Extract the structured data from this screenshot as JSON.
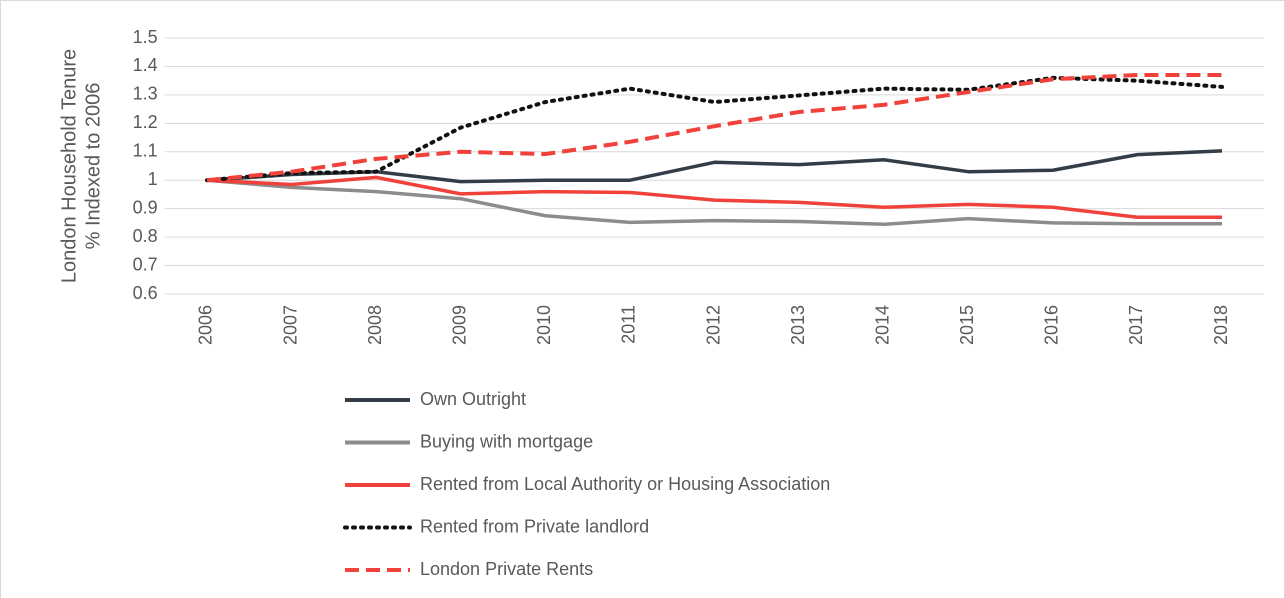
{
  "chart_data": {
    "type": "line",
    "y_label": [
      "London Household Tenure",
      "% Indexed to 2006"
    ],
    "categories": [
      "2006",
      "2007",
      "2008",
      "2009",
      "2010",
      "2011",
      "2012",
      "2013",
      "2014",
      "2015",
      "2016",
      "2017",
      "2018"
    ],
    "ylim": [
      0.6,
      1.5
    ],
    "yticks": [
      0.6,
      0.7,
      0.8,
      0.9,
      1,
      1.1,
      1.2,
      1.3,
      1.4,
      1.5
    ],
    "grid": true,
    "legend": "bottom",
    "series": [
      {
        "name": "Own Outright",
        "color": "#323d47",
        "style": "solid",
        "values": [
          1,
          1.02,
          1.03,
          0.995,
          1.0,
          1.0,
          1.063,
          1.055,
          1.072,
          1.03,
          1.035,
          1.09,
          1.103
        ]
      },
      {
        "name": "Buying with mortgage",
        "color": "#8c8c8c",
        "style": "solid",
        "values": [
          1,
          0.975,
          0.96,
          0.935,
          0.875,
          0.852,
          0.858,
          0.855,
          0.845,
          0.865,
          0.85,
          0.847,
          0.847
        ]
      },
      {
        "name": "Rented from Local Authority or Housing Association",
        "color": "#f0423a",
        "style": "solid",
        "values": [
          1,
          0.985,
          1.01,
          0.952,
          0.96,
          0.957,
          0.93,
          0.922,
          0.905,
          0.915,
          0.905,
          0.87,
          0.87
        ]
      },
      {
        "name": "Rented from Private landlord",
        "color": "#111111",
        "style": "dotted",
        "values": [
          1,
          1.025,
          1.03,
          1.185,
          1.275,
          1.322,
          1.275,
          1.298,
          1.322,
          1.318,
          1.36,
          1.35,
          1.328
        ]
      },
      {
        "name": "London Private Rents",
        "color": "#f0423a",
        "style": "dashed",
        "values": [
          1,
          1.03,
          1.075,
          1.1,
          1.092,
          1.135,
          1.19,
          1.24,
          1.265,
          1.31,
          1.355,
          1.37,
          1.37
        ]
      }
    ]
  }
}
